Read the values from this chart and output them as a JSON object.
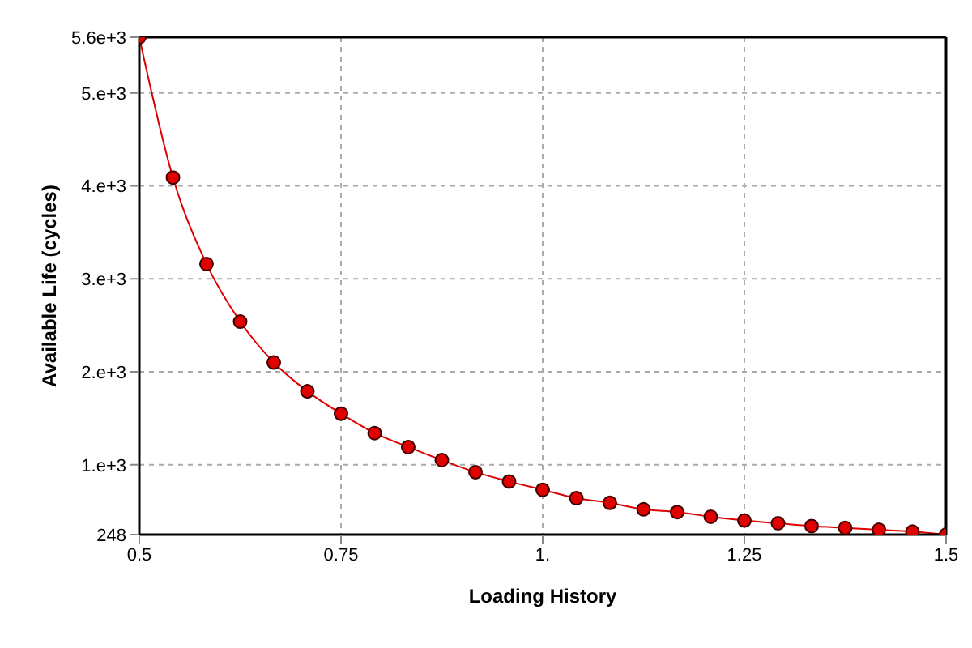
{
  "chart_data": {
    "type": "line",
    "xlabel": "Loading History",
    "ylabel": "Available Life (cycles)",
    "x": [
      0.5,
      0.5417,
      0.5833,
      0.625,
      0.6667,
      0.7083,
      0.75,
      0.7917,
      0.8333,
      0.875,
      0.9167,
      0.9583,
      1.0,
      1.0417,
      1.0833,
      1.125,
      1.1667,
      1.2083,
      1.25,
      1.2917,
      1.3333,
      1.375,
      1.4167,
      1.4583,
      1.5
    ],
    "series": [
      {
        "color": "#e00000",
        "values": [
          5600,
          4090,
          3160,
          2540,
          2100,
          1790,
          1550,
          1340,
          1190,
          1050,
          920,
          820,
          730,
          640,
          590,
          520,
          490,
          440,
          400,
          370,
          340,
          320,
          300,
          280,
          248
        ]
      }
    ],
    "xlim": [
      0.5,
      1.5
    ],
    "xticks": [
      0.5,
      0.75,
      {
        "value": 1,
        "label": "1."
      },
      1.25,
      1.5
    ],
    "ylim": [
      248,
      5600
    ],
    "yticks": [
      248,
      {
        "value": 1000,
        "label": "1.e+3"
      },
      {
        "value": 2000,
        "label": "2.e+3"
      },
      {
        "value": 3000,
        "label": "3.e+3"
      },
      {
        "value": 4000,
        "label": "4.e+3"
      },
      {
        "value": 5000,
        "label": "5.e+3"
      },
      {
        "value": 5600,
        "label": "5.6e+3"
      }
    ],
    "grid": true,
    "marker": "circle",
    "line_style": "solid",
    "legend": false
  }
}
